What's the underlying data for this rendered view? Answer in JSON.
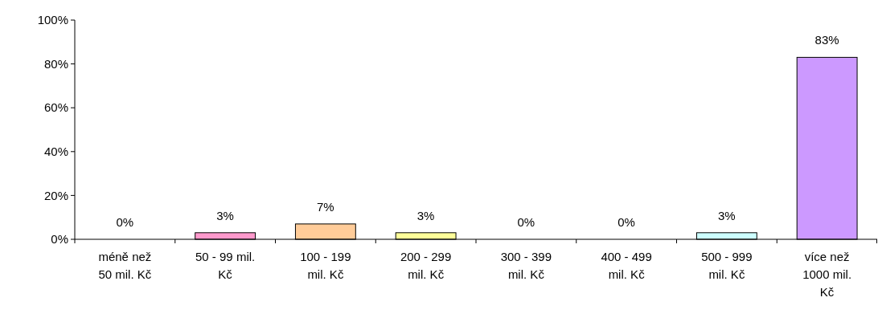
{
  "chart_data": {
    "type": "bar",
    "categories": [
      "méně než 50 mil. Kč",
      "50 - 99 mil. Kč",
      "100 - 199 mil. Kč",
      "200 - 299 mil. Kč",
      "300 - 399 mil. Kč",
      "400 - 499 mil. Kč",
      "500 - 999 mil. Kč",
      "více než 1000 mil. Kč"
    ],
    "values": [
      0,
      3,
      7,
      3,
      0,
      0,
      3,
      83
    ],
    "value_labels": [
      "0%",
      "3%",
      "7%",
      "3%",
      "0%",
      "0%",
      "3%",
      "83%"
    ],
    "colors": [
      "#9999ff",
      "#ff99cc",
      "#ffcc99",
      "#ffff99",
      "#ccffcc",
      "#99ccff",
      "#ccffff",
      "#cc99ff"
    ],
    "ylim": [
      0,
      100
    ],
    "yticks": [
      {
        "value": 0,
        "label": "0%"
      },
      {
        "value": 20,
        "label": "20%"
      },
      {
        "value": 40,
        "label": "40%"
      },
      {
        "value": 60,
        "label": "60%"
      },
      {
        "value": 80,
        "label": "80%"
      },
      {
        "value": 100,
        "label": "100%"
      }
    ],
    "grid": false
  }
}
